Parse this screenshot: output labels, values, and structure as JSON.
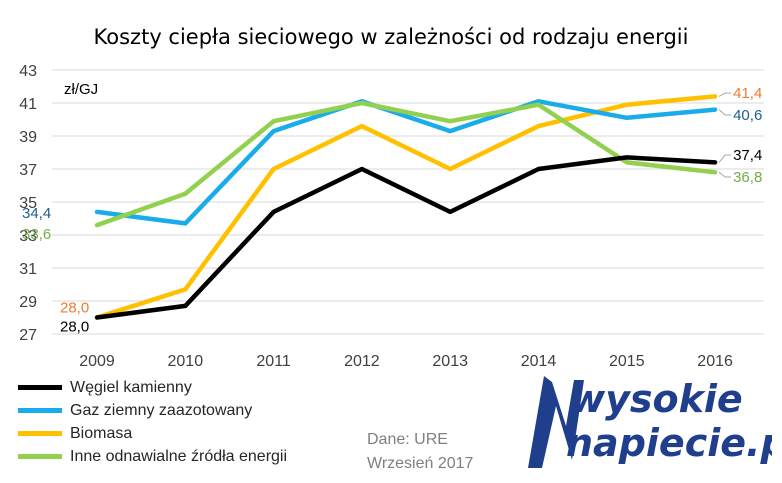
{
  "chart_data": {
    "type": "line",
    "title": "Koszty ciepła sieciowego w zależności od rodzaju energii",
    "unit_label": "zł/GJ",
    "categories": [
      "2009",
      "2010",
      "2011",
      "2012",
      "2013",
      "2014",
      "2015",
      "2016"
    ],
    "ylim": [
      27,
      43
    ],
    "yticks": [
      27,
      29,
      31,
      33,
      35,
      37,
      39,
      41,
      43
    ],
    "ytick_labels": [
      "27",
      "29",
      "31",
      "33",
      "35",
      "37",
      "39",
      "41",
      "43"
    ],
    "grid": true,
    "legend_position": "bottom-left",
    "series": [
      {
        "name": "Węgiel kamienny",
        "color": "#000000",
        "values": [
          28.0,
          28.7,
          34.4,
          37.0,
          34.4,
          37.0,
          37.7,
          37.4
        ],
        "start_label": "28,0",
        "end_label": "37,4",
        "start_label_color": "#000000",
        "end_label_color": "#000000"
      },
      {
        "name": "Gaz ziemny zaazotowany",
        "color": "#1aacea",
        "values": [
          34.4,
          33.7,
          39.3,
          41.1,
          39.3,
          41.1,
          40.1,
          40.6
        ],
        "start_label": "34,4",
        "end_label": "40,6",
        "start_label_color": "#1f5f8b",
        "end_label_color": "#1f5f8b"
      },
      {
        "name": "Biomasa",
        "color": "#ffc000",
        "values": [
          28.0,
          29.7,
          37.0,
          39.6,
          37.0,
          39.6,
          40.9,
          41.4
        ],
        "start_label": "28,0",
        "end_label": "41,4",
        "start_label_color": "#ed7d31",
        "end_label_color": "#ed7d31"
      },
      {
        "name": "Inne odnawialne źródła energii",
        "color": "#92d050",
        "values": [
          33.6,
          35.5,
          39.9,
          41.0,
          39.9,
          40.9,
          37.4,
          36.8
        ],
        "start_label": "33,6",
        "end_label": "36,8",
        "start_label_color": "#70ad47",
        "end_label_color": "#70ad47"
      }
    ]
  },
  "source": {
    "line1": "Dane: URE",
    "line2": "Wrzesień 2017"
  },
  "logo": {
    "line1": "wysokie",
    "line2": "napiecie.pl",
    "color": "#1f3e8c"
  }
}
